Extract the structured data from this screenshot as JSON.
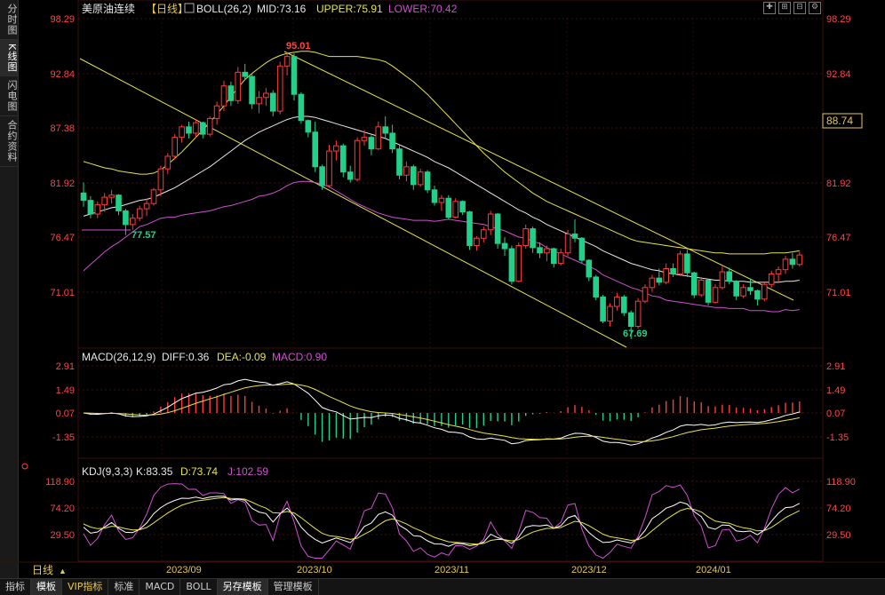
{
  "left_tabs": [
    "分时图",
    "K线图",
    "闪电图",
    "合约资料"
  ],
  "active_left_tab": 1,
  "header": {
    "symbol": "美原油连续",
    "period": "【日线】",
    "boll": "BOLL(26,2)",
    "mid": "MID:73.16",
    "upper": "UPPER:75.91",
    "lower": "LOWER:70.42"
  },
  "macd_header": {
    "name": "MACD(26,12,9)",
    "diff": "DIFF:0.36",
    "dea": "DEA:-0.09",
    "macd": "MACD:0.90"
  },
  "kdj_header": {
    "name": "KDJ(9,3,3)",
    "k": "K:83.35",
    "d": "D:73.74",
    "j": "J:102.59"
  },
  "price_axis": [
    "98.29",
    "92.84",
    "87.38",
    "81.92",
    "76.47",
    "71.01"
  ],
  "macd_axis": [
    "2.91",
    "1.49",
    "0.07",
    "-1.35"
  ],
  "kdj_axis": [
    "118.90",
    "74.20",
    "29.50"
  ],
  "current_price": "88.74",
  "annotations": {
    "high": "95.01",
    "low1": "77.57",
    "low2": "67.69"
  },
  "date_labels": [
    "2023/09",
    "2023/10",
    "2023/11",
    "2023/12",
    "2024/01"
  ],
  "period_label": "日线",
  "bottom_tabs": [
    "指标",
    "模板",
    "VIP指标",
    "标准",
    "MACD",
    "BOLL",
    "另存模板",
    "管理模板"
  ],
  "active_bottom_tabs": [
    1,
    6
  ],
  "colors": {
    "up": "#ff3b3b",
    "down": "#22d08a",
    "mid": "#e8e8e8",
    "upper": "#e6e44a",
    "lower": "#d050d0",
    "diff": "#ffffff",
    "dea": "#e6e44a",
    "kdj_k": "#ffffff",
    "kdj_d": "#e6e44a",
    "kdj_j": "#d050d0",
    "axis_red": "#ff4444",
    "date": "#e6c84e"
  },
  "chart_data": {
    "type": "candlestick",
    "price_ylim": [
      67.0,
      98.29
    ],
    "ohlc": [
      [
        81.6,
        82.6,
        80.3,
        80.9
      ],
      [
        80.9,
        81.3,
        79.2,
        79.6
      ],
      [
        79.6,
        80.8,
        79.2,
        80.5
      ],
      [
        80.5,
        81.6,
        79.8,
        81.2
      ],
      [
        81.2,
        81.9,
        80.6,
        81.4
      ],
      [
        81.4,
        81.5,
        79.5,
        79.9
      ],
      [
        79.9,
        80.1,
        77.6,
        78.6
      ],
      [
        78.6,
        79.6,
        78.1,
        79.2
      ],
      [
        79.2,
        80.4,
        78.9,
        80.1
      ],
      [
        80.1,
        81.1,
        79.4,
        80.6
      ],
      [
        80.6,
        82.1,
        80.4,
        81.9
      ],
      [
        81.9,
        84.2,
        81.3,
        83.9
      ],
      [
        83.9,
        85.4,
        83.4,
        85.1
      ],
      [
        85.1,
        87.2,
        84.8,
        86.9
      ],
      [
        86.9,
        88.1,
        86.4,
        87.9
      ],
      [
        87.9,
        88.4,
        86.8,
        87.3
      ],
      [
        87.3,
        88.6,
        86.9,
        88.3
      ],
      [
        88.3,
        88.4,
        86.8,
        87.2
      ],
      [
        87.2,
        88.9,
        87.0,
        88.7
      ],
      [
        88.7,
        90.3,
        88.1,
        89.9
      ],
      [
        89.9,
        92.3,
        89.4,
        91.8
      ],
      [
        91.8,
        92.2,
        89.9,
        90.4
      ],
      [
        90.4,
        93.6,
        90.1,
        93.1
      ],
      [
        93.1,
        93.9,
        92.4,
        92.7
      ],
      [
        92.7,
        92.9,
        89.6,
        90.1
      ],
      [
        90.1,
        91.3,
        89.2,
        90.7
      ],
      [
        90.7,
        91.6,
        89.9,
        91.1
      ],
      [
        91.1,
        91.4,
        88.9,
        89.4
      ],
      [
        89.4,
        94.1,
        89.1,
        93.7
      ],
      [
        93.7,
        95.01,
        92.8,
        94.6
      ],
      [
        94.6,
        94.9,
        90.4,
        91.0
      ],
      [
        91.0,
        91.2,
        88.2,
        88.5
      ],
      [
        88.5,
        88.6,
        86.9,
        87.4
      ],
      [
        87.4,
        88.4,
        83.6,
        84.1
      ],
      [
        84.1,
        84.3,
        81.9,
        82.3
      ],
      [
        82.3,
        86.2,
        82.1,
        85.6
      ],
      [
        85.6,
        86.6,
        84.7,
        86.1
      ],
      [
        86.1,
        86.3,
        83.1,
        83.6
      ],
      [
        83.6,
        84.2,
        82.6,
        82.9
      ],
      [
        82.9,
        86.9,
        82.7,
        86.6
      ],
      [
        86.6,
        87.6,
        86.1,
        86.9
      ],
      [
        86.9,
        87.1,
        85.2,
        85.8
      ],
      [
        85.8,
        88.4,
        85.7,
        87.9
      ],
      [
        87.9,
        88.9,
        86.8,
        87.3
      ],
      [
        87.3,
        88.1,
        85.4,
        85.8
      ],
      [
        85.8,
        86.1,
        82.9,
        83.3
      ],
      [
        83.3,
        84.6,
        82.7,
        84.1
      ],
      [
        84.1,
        84.3,
        81.9,
        82.4
      ],
      [
        82.4,
        83.9,
        82.2,
        83.6
      ],
      [
        83.6,
        83.8,
        81.6,
        81.9
      ],
      [
        81.9,
        82.3,
        80.4,
        80.7
      ],
      [
        80.7,
        81.4,
        79.9,
        81.1
      ],
      [
        81.1,
        81.4,
        79.1,
        79.3
      ],
      [
        79.3,
        81.1,
        79.2,
        80.8
      ],
      [
        80.8,
        80.9,
        79.5,
        79.8
      ],
      [
        79.8,
        79.9,
        76.2,
        76.6
      ],
      [
        76.6,
        77.5,
        76.1,
        77.3
      ],
      [
        77.3,
        78.4,
        76.9,
        78.1
      ],
      [
        78.1,
        79.9,
        77.6,
        79.6
      ],
      [
        79.6,
        79.7,
        76.3,
        76.8
      ],
      [
        76.8,
        77.4,
        75.6,
        76.3
      ],
      [
        76.3,
        76.6,
        72.9,
        73.2
      ],
      [
        73.2,
        76.9,
        73.1,
        76.6
      ],
      [
        76.6,
        78.6,
        76.3,
        78.2
      ],
      [
        78.2,
        78.4,
        75.9,
        76.4
      ],
      [
        76.4,
        76.9,
        75.4,
        75.9
      ],
      [
        75.9,
        76.6,
        75.1,
        76.3
      ],
      [
        76.3,
        76.4,
        74.5,
        74.9
      ],
      [
        74.9,
        76.3,
        74.7,
        75.9
      ],
      [
        75.9,
        78.1,
        75.6,
        77.7
      ],
      [
        77.7,
        79.1,
        76.9,
        77.3
      ],
      [
        77.3,
        77.4,
        74.9,
        75.2
      ],
      [
        75.2,
        75.3,
        73.2,
        73.6
      ],
      [
        73.6,
        73.8,
        71.4,
        71.7
      ],
      [
        71.7,
        71.9,
        69.2,
        69.4
      ],
      [
        69.4,
        71.1,
        68.9,
        70.8
      ],
      [
        70.8,
        72.1,
        70.4,
        71.7
      ],
      [
        71.7,
        71.9,
        69.9,
        70.2
      ],
      [
        70.2,
        70.4,
        67.69,
        68.9
      ],
      [
        68.9,
        71.6,
        68.7,
        71.3
      ],
      [
        71.3,
        72.9,
        71.1,
        72.6
      ],
      [
        72.6,
        73.8,
        72.2,
        73.5
      ],
      [
        73.5,
        74.4,
        72.8,
        73.1
      ],
      [
        73.1,
        74.9,
        72.9,
        74.4
      ],
      [
        74.4,
        74.9,
        73.6,
        73.9
      ],
      [
        73.9,
        76.1,
        73.7,
        75.8
      ],
      [
        75.8,
        76.2,
        73.6,
        74.0
      ],
      [
        74.0,
        74.1,
        71.6,
        71.9
      ],
      [
        71.9,
        73.6,
        71.7,
        73.3
      ],
      [
        73.3,
        73.4,
        70.9,
        71.2
      ],
      [
        71.2,
        72.9,
        71.1,
        72.6
      ],
      [
        72.6,
        74.6,
        72.4,
        74.1
      ],
      [
        74.1,
        74.5,
        72.9,
        73.2
      ],
      [
        73.2,
        73.3,
        71.4,
        71.8
      ],
      [
        71.8,
        72.9,
        71.6,
        72.6
      ],
      [
        72.6,
        73.4,
        71.9,
        72.3
      ],
      [
        72.3,
        72.4,
        70.9,
        71.5
      ],
      [
        71.5,
        73.1,
        71.3,
        72.9
      ],
      [
        72.9,
        74.2,
        72.6,
        73.9
      ],
      [
        73.9,
        74.6,
        73.1,
        74.3
      ],
      [
        74.3,
        75.6,
        73.9,
        75.3
      ],
      [
        75.3,
        75.9,
        74.4,
        74.8
      ],
      [
        74.8,
        76.0,
        74.6,
        75.7
      ]
    ],
    "boll_mid": [
      79.4,
      79.6,
      79.8,
      80.0,
      80.2,
      80.3,
      80.5,
      80.7,
      80.9,
      81.0,
      81.2,
      81.5,
      81.8,
      82.1,
      82.5,
      82.9,
      83.3,
      83.7,
      84.1,
      84.6,
      85.1,
      85.6,
      86.1,
      86.6,
      87.0,
      87.4,
      87.7,
      88.0,
      88.3,
      88.6,
      88.8,
      88.9,
      88.9,
      88.8,
      88.6,
      88.4,
      88.2,
      88.0,
      87.8,
      87.6,
      87.4,
      87.2,
      87.0,
      86.8,
      86.5,
      86.2,
      85.9,
      85.6,
      85.3,
      85.0,
      84.6,
      84.3,
      84.0,
      83.6,
      83.2,
      82.8,
      82.4,
      82.0,
      81.6,
      81.2,
      80.8,
      80.4,
      80.0,
      79.7,
      79.3,
      79.0,
      78.6,
      78.3,
      78.0,
      77.7,
      77.4,
      77.1,
      76.8,
      76.5,
      76.1,
      75.8,
      75.5,
      75.2,
      74.9,
      74.7,
      74.5,
      74.3,
      74.2,
      74.0,
      73.9,
      73.8,
      73.7,
      73.6,
      73.5,
      73.4,
      73.3,
      73.3,
      73.2,
      73.2,
      73.2,
      73.1,
      73.1,
      73.1,
      73.1,
      73.1,
      73.2,
      73.2,
      73.3
    ],
    "boll_upper": [
      84.6,
      84.4,
      84.2,
      84.0,
      83.9,
      83.7,
      83.6,
      83.5,
      83.4,
      83.4,
      83.5,
      83.8,
      84.3,
      84.9,
      85.5,
      86.2,
      86.9,
      87.6,
      88.3,
      89.1,
      89.9,
      90.8,
      91.6,
      92.4,
      93.0,
      93.5,
      94.0,
      94.4,
      94.7,
      94.9,
      95.0,
      95.1,
      95.1,
      95.0,
      94.8,
      94.6,
      94.6,
      94.6,
      94.6,
      94.6,
      94.5,
      94.4,
      94.3,
      94.1,
      93.7,
      93.2,
      92.7,
      92.2,
      91.6,
      91.0,
      90.3,
      89.6,
      88.9,
      88.2,
      87.5,
      86.8,
      86.1,
      85.4,
      84.8,
      84.2,
      83.6,
      83.1,
      82.6,
      82.1,
      81.6,
      81.2,
      80.8,
      80.5,
      80.2,
      79.9,
      79.6,
      79.3,
      79.0,
      78.7,
      78.4,
      78.1,
      77.8,
      77.5,
      77.2,
      77.0,
      76.9,
      76.8,
      76.7,
      76.6,
      76.5,
      76.4,
      76.3,
      76.2,
      76.1,
      76.0,
      75.9,
      75.9,
      75.8,
      75.8,
      75.8,
      75.8,
      75.8,
      75.8,
      75.9,
      75.9,
      75.9,
      76.0,
      76.1
    ],
    "boll_lower": [
      74.2,
      74.8,
      75.4,
      76.0,
      76.5,
      76.9,
      77.4,
      77.9,
      78.4,
      78.6,
      78.9,
      79.2,
      79.3,
      79.3,
      79.5,
      79.6,
      79.7,
      79.8,
      79.9,
      80.1,
      80.3,
      80.4,
      80.6,
      80.8,
      81.0,
      81.3,
      81.4,
      81.6,
      81.9,
      82.3,
      82.6,
      82.7,
      82.7,
      82.6,
      82.4,
      82.2,
      81.8,
      81.4,
      81.0,
      80.6,
      80.3,
      80.0,
      79.7,
      79.5,
      79.3,
      79.2,
      79.1,
      79.0,
      79.0,
      79.0,
      78.9,
      79.0,
      79.1,
      79.0,
      78.9,
      78.8,
      78.7,
      78.6,
      78.4,
      78.2,
      78.0,
      77.7,
      77.4,
      77.3,
      77.0,
      76.8,
      76.4,
      76.1,
      75.8,
      75.5,
      75.2,
      74.9,
      74.6,
      74.3,
      73.8,
      73.5,
      73.2,
      72.9,
      72.6,
      72.4,
      72.1,
      71.8,
      71.7,
      71.4,
      71.3,
      71.2,
      71.1,
      71.0,
      70.9,
      70.8,
      70.7,
      70.7,
      70.6,
      70.6,
      70.6,
      70.4,
      70.4,
      70.4,
      70.3,
      70.3,
      70.5,
      70.4,
      70.5
    ]
  }
}
